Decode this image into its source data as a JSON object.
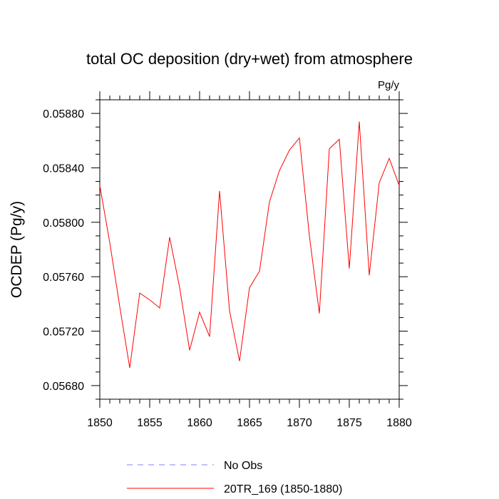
{
  "chart_data": {
    "type": "line",
    "title": "total OC deposition (dry+wet) from atmosphere",
    "units_label": "Pg/y",
    "ylabel": "OCDEP  (Pg/y)",
    "xlabel": "",
    "xlim": [
      1850,
      1880
    ],
    "ylim": [
      0.0567,
      0.0589
    ],
    "xticks": [
      "1850",
      "1855",
      "1860",
      "1865",
      "1870",
      "1875",
      "1880"
    ],
    "yticks": [
      "0.05680",
      "0.05720",
      "0.05760",
      "0.05800",
      "0.05840",
      "0.05880"
    ],
    "legend_position": "bottom",
    "series": [
      {
        "name": "No Obs",
        "style": "dashed",
        "color": "#8080ff",
        "x": [],
        "values": []
      },
      {
        "name": "20TR_169 (1850-1880)",
        "style": "solid",
        "color": "#ff0000",
        "x": [
          1850,
          1851,
          1852,
          1853,
          1854,
          1855,
          1856,
          1857,
          1858,
          1859,
          1860,
          1861,
          1862,
          1863,
          1864,
          1865,
          1866,
          1867,
          1868,
          1869,
          1870,
          1871,
          1872,
          1873,
          1874,
          1875,
          1876,
          1877,
          1878,
          1879,
          1880
        ],
        "values": [
          0.05827,
          0.05785,
          0.05738,
          0.05693,
          0.05748,
          0.05743,
          0.05737,
          0.05789,
          0.05752,
          0.05706,
          0.05734,
          0.05716,
          0.05823,
          0.05735,
          0.05698,
          0.05752,
          0.05764,
          0.05815,
          0.05838,
          0.05853,
          0.05862,
          0.0579,
          0.05733,
          0.05854,
          0.05861,
          0.05766,
          0.05874,
          0.05761,
          0.05829,
          0.05847,
          0.05827
        ]
      }
    ]
  }
}
